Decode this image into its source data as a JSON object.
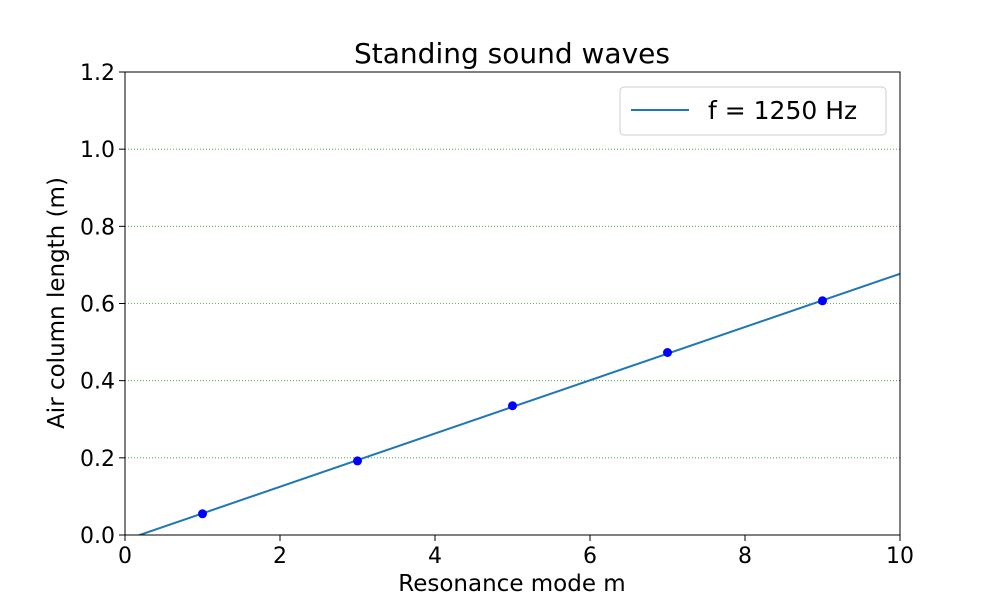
{
  "chart_data": {
    "type": "line",
    "title": "Standing sound waves",
    "xlabel": "Resonance mode m",
    "ylabel": "Air column length (m)",
    "xlim": [
      0,
      10
    ],
    "ylim": [
      0,
      1.2
    ],
    "xticks": [
      0,
      2,
      4,
      6,
      8,
      10
    ],
    "yticks": [
      0.0,
      0.2,
      0.4,
      0.6,
      0.8,
      1.0,
      1.2
    ],
    "xtick_labels": [
      "0",
      "2",
      "4",
      "6",
      "8",
      "10"
    ],
    "ytick_labels": [
      "0.0",
      "0.2",
      "0.4",
      "0.6",
      "0.8",
      "1.0",
      "1.2"
    ],
    "grid": {
      "axis": "y",
      "style": "dotted",
      "color": "#2ca02c"
    },
    "legend_position": "top-right",
    "series": [
      {
        "name": "f = 1250 Hz",
        "kind": "line",
        "color": "#1f77b4",
        "x": [
          0,
          10
        ],
        "y": [
          -0.013,
          0.677
        ]
      },
      {
        "kind": "scatter",
        "color": "#0000ff",
        "x": [
          1,
          3,
          5,
          7,
          9
        ],
        "y": [
          0.055,
          0.192,
          0.335,
          0.473,
          0.607
        ]
      }
    ]
  }
}
